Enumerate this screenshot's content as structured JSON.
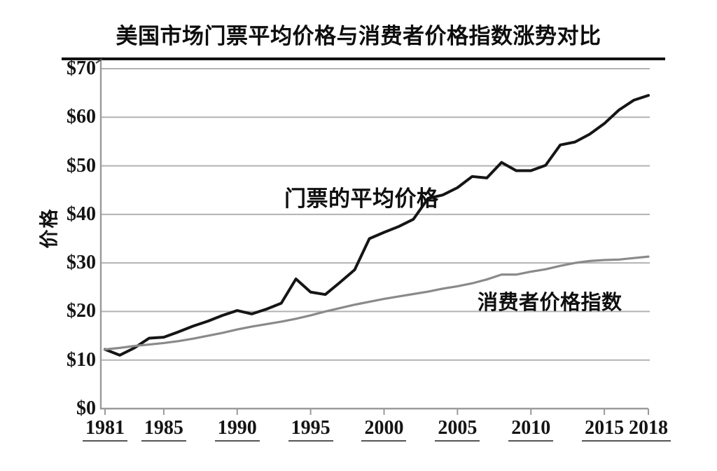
{
  "title": "美国市场门票平均价格与消费者价格指数涨势对比",
  "chart_data": {
    "type": "line",
    "title": "美国市场门票平均价格与消费者价格指数涨势对比",
    "xlabel": "",
    "ylabel": "价格",
    "xlim": [
      1981,
      2018
    ],
    "ylim": [
      0,
      70
    ],
    "grid": true,
    "legend_position": "inline-annotations",
    "x": [
      1981,
      1982,
      1983,
      1984,
      1985,
      1986,
      1987,
      1988,
      1989,
      1990,
      1991,
      1992,
      1993,
      1994,
      1995,
      1996,
      1997,
      1998,
      1999,
      2000,
      2001,
      2002,
      2003,
      2004,
      2005,
      2006,
      2007,
      2008,
      2009,
      2010,
      2011,
      2012,
      2013,
      2014,
      2015,
      2016,
      2017,
      2018
    ],
    "series": [
      {
        "name": "门票的平均价格",
        "color": "#151515",
        "values": [
          12.2,
          11.0,
          12.5,
          14.5,
          14.7,
          15.8,
          17.0,
          18.0,
          19.2,
          20.2,
          19.5,
          20.5,
          21.7,
          26.7,
          24.0,
          23.5,
          26.0,
          28.6,
          35.0,
          36.3,
          37.5,
          39.0,
          43.3,
          44.0,
          45.5,
          47.8,
          47.5,
          50.7,
          49.0,
          49.0,
          50.1,
          54.3,
          54.9,
          56.5,
          58.7,
          61.5,
          63.5,
          64.5
        ]
      },
      {
        "name": "消费者价格指数",
        "color": "#8a8a8a",
        "values": [
          12.2,
          12.5,
          12.9,
          13.2,
          13.5,
          13.9,
          14.4,
          15.0,
          15.6,
          16.3,
          16.9,
          17.4,
          17.9,
          18.5,
          19.2,
          20.0,
          20.7,
          21.4,
          22.0,
          22.6,
          23.1,
          23.6,
          24.1,
          24.7,
          25.2,
          25.8,
          26.6,
          27.6,
          27.6,
          28.2,
          28.7,
          29.4,
          30.0,
          30.4,
          30.6,
          30.7,
          31.0,
          31.3
        ]
      }
    ],
    "x_tick_years": [
      1981,
      1985,
      1990,
      1995,
      2000,
      2005,
      2010,
      2015,
      2018
    ],
    "x_tick_labels": [
      "1981",
      "1985",
      "1990",
      "1995",
      "2000",
      "2005",
      "2010",
      "2015",
      "2018"
    ],
    "y_ticks": [
      0,
      10,
      20,
      30,
      40,
      50,
      60,
      70
    ],
    "y_tick_labels": [
      "$0",
      "$10",
      "$20",
      "$30",
      "$40",
      "$50",
      "$60",
      "$70"
    ]
  },
  "colors": {
    "ticket_line": "#151515",
    "cpi_line": "#8a8a8a",
    "gridline": "#b3b3b3",
    "axis": "#9a9a9a",
    "top_border": "#111111",
    "text": "#0d0d0d"
  }
}
